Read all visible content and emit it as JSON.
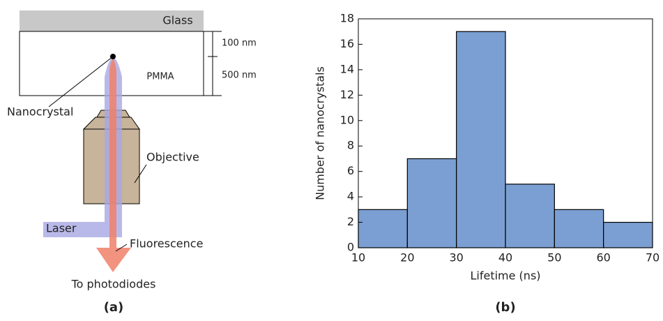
{
  "diagram": {
    "glass": "Glass",
    "thickness_top": "100 nm",
    "thickness_bottom": "500 nm",
    "layer": "PMMA",
    "nanocrystal": "Nanocrystal",
    "objective": "Objective",
    "laser": "Laser",
    "fluorescence": "Fluorescence",
    "output": "To photodiodes",
    "panel_label": "(a)"
  },
  "chart_data": {
    "type": "histogram",
    "panel_label": "(b)",
    "x_label": "Lifetime (ns)",
    "y_label": "Number of nanocrystals",
    "bins": [
      10,
      20,
      30,
      40,
      50,
      60,
      70
    ],
    "values": [
      3,
      7,
      17,
      5,
      3,
      2
    ],
    "color": "#7b9fd2",
    "xlim": [
      10,
      70
    ],
    "ylim": [
      0,
      18
    ],
    "xticks": [
      10,
      20,
      30,
      40,
      50,
      60,
      70
    ],
    "yticks": [
      0,
      2,
      4,
      6,
      8,
      10,
      12,
      14,
      16,
      18
    ]
  }
}
